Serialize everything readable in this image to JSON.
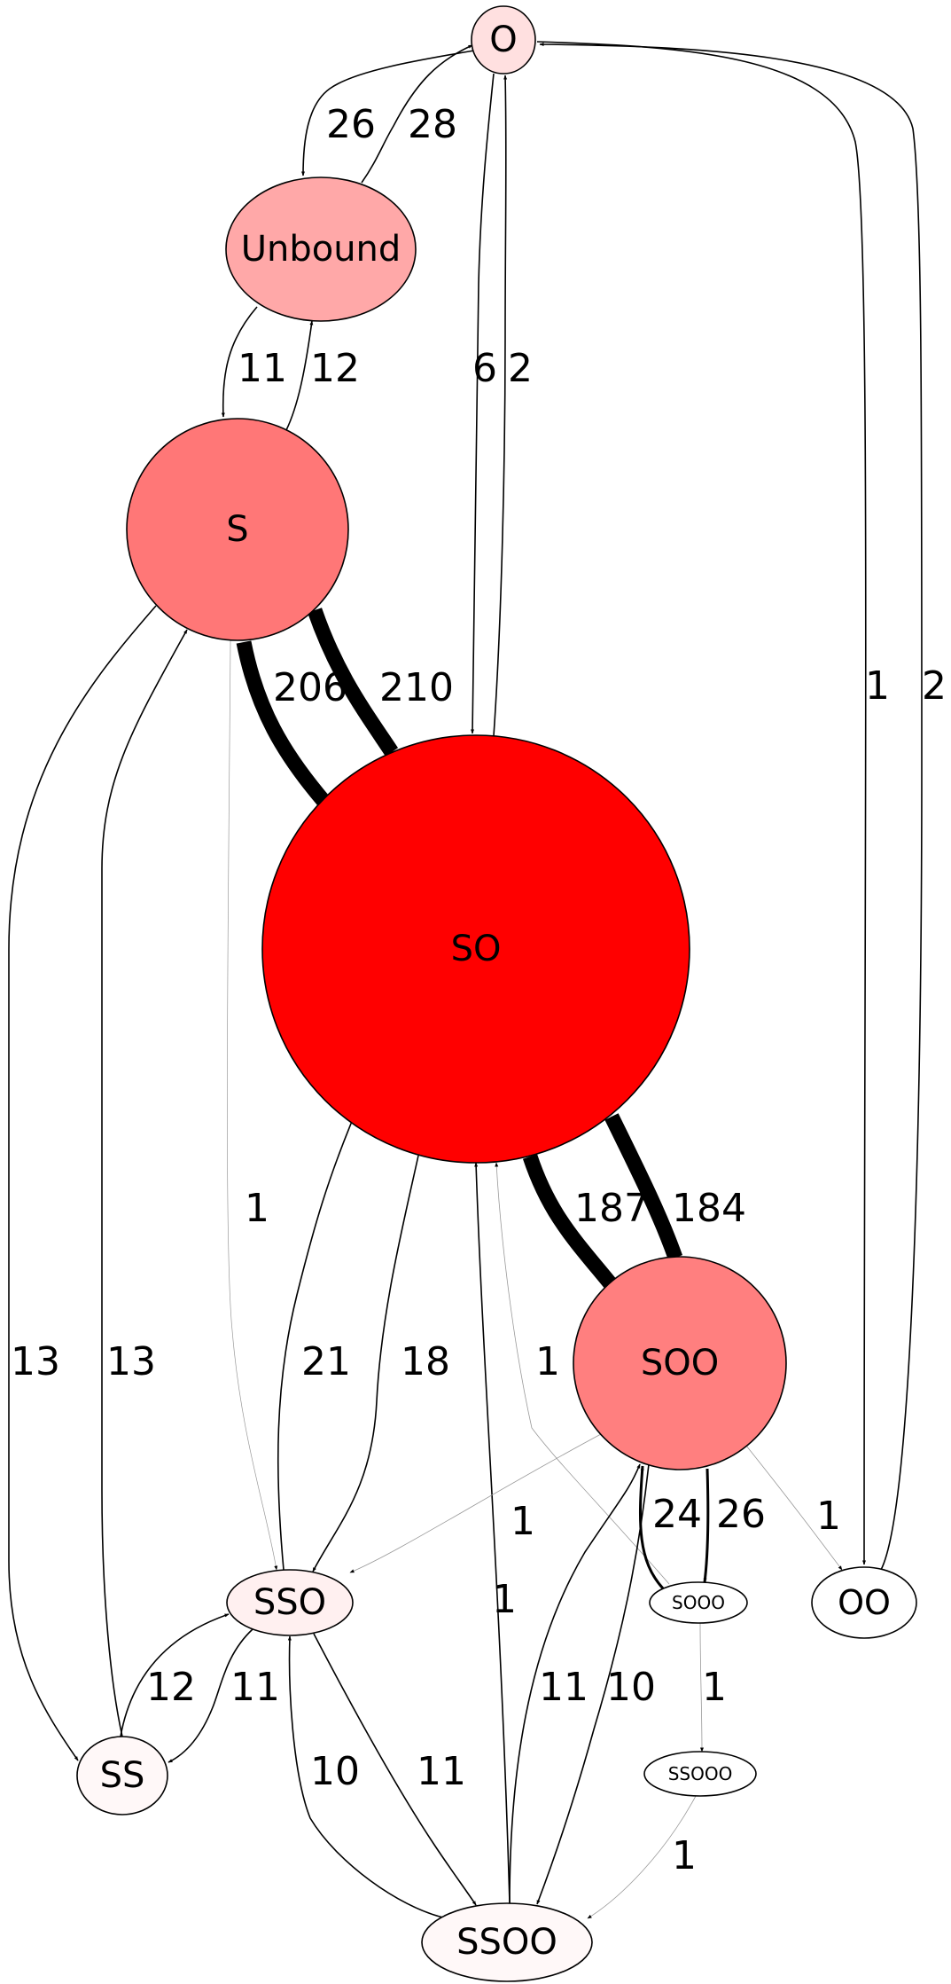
{
  "nodes": [
    {
      "id": "O",
      "label": "O",
      "fill": "#ffe0e0"
    },
    {
      "id": "Unbound",
      "label": "Unbound",
      "fill": "#ffa8a8"
    },
    {
      "id": "S",
      "label": "S",
      "fill": "#ff7777"
    },
    {
      "id": "SO",
      "label": "SO",
      "fill": "#ff0000"
    },
    {
      "id": "SOO",
      "label": "SOO",
      "fill": "#ff7f7f"
    },
    {
      "id": "SSO",
      "label": "SSO",
      "fill": "#fff0f0"
    },
    {
      "id": "SS",
      "label": "SS",
      "fill": "#fff8f8"
    },
    {
      "id": "SOOO",
      "label": "SOOO",
      "fill": "#ffffff"
    },
    {
      "id": "OO",
      "label": "OO",
      "fill": "#ffffff"
    },
    {
      "id": "SSOOO",
      "label": "SSOOO",
      "fill": "#ffffff"
    },
    {
      "id": "SSOO",
      "label": "SSOO",
      "fill": "#fff8f8"
    }
  ],
  "edges": [
    {
      "from": "O",
      "to": "Unbound",
      "label": "26"
    },
    {
      "from": "Unbound",
      "to": "O",
      "label": "28"
    },
    {
      "from": "O",
      "to": "SO",
      "label": "6"
    },
    {
      "from": "SO",
      "to": "O",
      "label": "2"
    },
    {
      "from": "O",
      "to": "OO",
      "label": "1"
    },
    {
      "from": "OO",
      "to": "O",
      "label": "2"
    },
    {
      "from": "Unbound",
      "to": "S",
      "label": "11"
    },
    {
      "from": "S",
      "to": "Unbound",
      "label": "12"
    },
    {
      "from": "S",
      "to": "SO",
      "label": "206"
    },
    {
      "from": "SO",
      "to": "S",
      "label": "210"
    },
    {
      "from": "S",
      "to": "SSO",
      "label": "1"
    },
    {
      "from": "S",
      "to": "SS",
      "label": "13"
    },
    {
      "from": "SS",
      "to": "S",
      "label": "13"
    },
    {
      "from": "SO",
      "to": "SOO",
      "label": "187"
    },
    {
      "from": "SOO",
      "to": "SO",
      "label": "184"
    },
    {
      "from": "SSO",
      "to": "SO",
      "label": "21"
    },
    {
      "from": "SO",
      "to": "SSO",
      "label": "18"
    },
    {
      "from": "SOOO",
      "to": "SO",
      "label": "1"
    },
    {
      "from": "SSOO",
      "to": "SO",
      "label": "1"
    },
    {
      "from": "SOO",
      "to": "SSO",
      "label": "1"
    },
    {
      "from": "SOOO",
      "to": "SOO",
      "label": "24"
    },
    {
      "from": "SOO",
      "to": "SOOO",
      "label": "26"
    },
    {
      "from": "SOO",
      "to": "OO",
      "label": "1"
    },
    {
      "from": "SS",
      "to": "SSO",
      "label": "12"
    },
    {
      "from": "SSO",
      "to": "SS",
      "label": "11"
    },
    {
      "from": "SSOO",
      "to": "SSO",
      "label": "10"
    },
    {
      "from": "SSO",
      "to": "SSOO",
      "label": "11"
    },
    {
      "from": "SSOO",
      "to": "SOO",
      "label": "11"
    },
    {
      "from": "SOO",
      "to": "SSOO",
      "label": "10"
    },
    {
      "from": "SOOO",
      "to": "SSOOO",
      "label": "1"
    },
    {
      "from": "SSOOO",
      "to": "SSOO",
      "label": "1"
    }
  ]
}
